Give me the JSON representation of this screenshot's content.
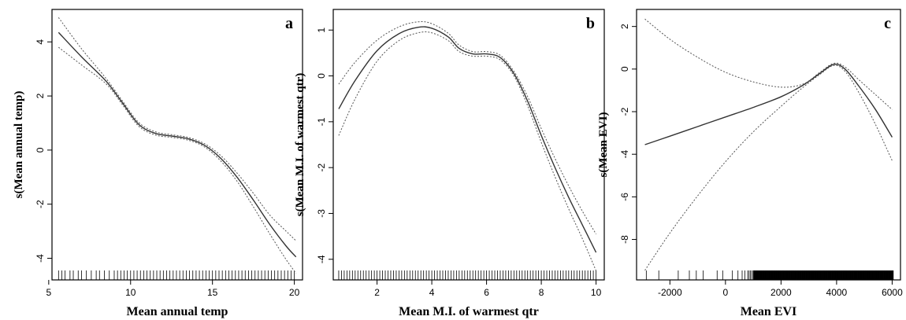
{
  "chart_data": [
    {
      "type": "line",
      "panel_label": "a",
      "xlabel": "Mean annual temp",
      "ylabel": "s(Mean annual temp)",
      "xlim": [
        5.2,
        20.5
      ],
      "ylim": [
        -4.8,
        5.2
      ],
      "xticks": [
        5,
        10,
        15,
        20
      ],
      "yticks": [
        -4,
        -2,
        0,
        2,
        4
      ],
      "ytick_labels": [
        "-4",
        "-2",
        "0",
        "2",
        "4"
      ],
      "xtick_labels": [
        "5",
        "10",
        "15",
        "20"
      ],
      "series": [
        {
          "role": "fit",
          "x": [
            5.6,
            7,
            8.5,
            9.5,
            10.5,
            11.5,
            12.5,
            13.5,
            14.5,
            15.5,
            16.5,
            17.5,
            18.5,
            19.5,
            20.1
          ],
          "y": [
            4.35,
            3.45,
            2.55,
            1.75,
            0.95,
            0.62,
            0.52,
            0.42,
            0.18,
            -0.3,
            -1.0,
            -1.85,
            -2.75,
            -3.55,
            -3.95
          ]
        },
        {
          "role": "upper",
          "x": [
            5.6,
            7,
            8.5,
            9.5,
            10.5,
            11.5,
            12.5,
            13.5,
            14.5,
            15.5,
            16.5,
            17.5,
            18.5,
            19.5,
            20.1
          ],
          "y": [
            4.9,
            3.75,
            2.65,
            1.82,
            1.02,
            0.68,
            0.57,
            0.47,
            0.24,
            -0.2,
            -0.85,
            -1.6,
            -2.4,
            -3.0,
            -3.35
          ]
        },
        {
          "role": "lower",
          "x": [
            5.6,
            7,
            8.5,
            9.5,
            10.5,
            11.5,
            12.5,
            13.5,
            14.5,
            15.5,
            16.5,
            17.5,
            18.5,
            19.5,
            20.1
          ],
          "y": [
            3.8,
            3.15,
            2.45,
            1.68,
            0.88,
            0.56,
            0.47,
            0.37,
            0.12,
            -0.4,
            -1.15,
            -2.1,
            -3.1,
            -4.05,
            -4.55
          ]
        }
      ],
      "rug": [
        5.6,
        5.8,
        6.0,
        6.3,
        6.5,
        6.8,
        7.0,
        7.3,
        7.6,
        7.9,
        8.1,
        8.4,
        8.7,
        9.0,
        9.2,
        9.4,
        9.6,
        9.8,
        10.0,
        10.2,
        10.4,
        10.6,
        10.8,
        11.0,
        11.2,
        11.4,
        11.6,
        11.8,
        12.0,
        12.2,
        12.4,
        12.6,
        12.8,
        13.0,
        13.2,
        13.4,
        13.6,
        13.8,
        14.0,
        14.2,
        14.4,
        14.6,
        14.8,
        15.0,
        15.2,
        15.4,
        15.6,
        15.8,
        16.0,
        16.2,
        16.4,
        16.6,
        16.8,
        17.0,
        17.2,
        17.4,
        17.6,
        17.8,
        18.0,
        18.2,
        18.4,
        18.6,
        18.8,
        19.0,
        19.2,
        19.4,
        19.6,
        19.8,
        20.0
      ]
    },
    {
      "type": "line",
      "panel_label": "b",
      "xlabel": "Mean M.I. of warmest qtr",
      "ylabel": "s(Mean M.I. of warmest qtr)",
      "xlim": [
        0.4,
        10.3
      ],
      "ylim": [
        -4.45,
        1.45
      ],
      "xticks": [
        2,
        4,
        6,
        8,
        10
      ],
      "yticks": [
        -4,
        -3,
        -2,
        -1,
        0,
        1
      ],
      "ytick_labels": [
        "-4",
        "-3",
        "-2",
        "-1",
        "0",
        "1"
      ],
      "xtick_labels": [
        "2",
        "4",
        "6",
        "8",
        "10"
      ],
      "series": [
        {
          "role": "fit",
          "x": [
            0.6,
            1.2,
            2.0,
            2.8,
            3.5,
            4.0,
            4.6,
            5.0,
            5.5,
            6.0,
            6.5,
            7.0,
            7.5,
            8.0,
            8.5,
            9.0,
            9.5,
            10.0
          ],
          "y": [
            -0.72,
            -0.1,
            0.55,
            0.92,
            1.06,
            1.04,
            0.85,
            0.6,
            0.48,
            0.48,
            0.4,
            0.05,
            -0.55,
            -1.3,
            -2.0,
            -2.65,
            -3.25,
            -3.85
          ]
        },
        {
          "role": "upper",
          "x": [
            0.6,
            1.2,
            2.0,
            2.8,
            3.5,
            4.0,
            4.6,
            5.0,
            5.5,
            6.0,
            6.5,
            7.0,
            7.5,
            8.0,
            8.5,
            9.0,
            9.5,
            10.0
          ],
          "y": [
            -0.18,
            0.3,
            0.78,
            1.07,
            1.18,
            1.14,
            0.93,
            0.67,
            0.53,
            0.53,
            0.45,
            0.1,
            -0.45,
            -1.15,
            -1.8,
            -2.4,
            -2.95,
            -3.45
          ]
        },
        {
          "role": "lower",
          "x": [
            0.6,
            1.2,
            2.0,
            2.8,
            3.5,
            4.0,
            4.6,
            5.0,
            5.5,
            6.0,
            6.5,
            7.0,
            7.5,
            8.0,
            8.5,
            9.0,
            9.5,
            10.0
          ],
          "y": [
            -1.3,
            -0.5,
            0.32,
            0.77,
            0.94,
            0.94,
            0.77,
            0.53,
            0.43,
            0.43,
            0.35,
            0.0,
            -0.65,
            -1.45,
            -2.2,
            -2.9,
            -3.55,
            -4.25
          ]
        }
      ],
      "rug_range": [
        0.6,
        10.0
      ],
      "rug_step": 0.1
    },
    {
      "type": "line",
      "panel_label": "c",
      "xlabel": "Mean EVI",
      "ylabel": "s(Mean EVI)",
      "xlim": [
        -3200,
        6300
      ],
      "ylim": [
        -9.9,
        2.8
      ],
      "xticks": [
        -2000,
        0,
        2000,
        4000,
        6000
      ],
      "yticks": [
        -8,
        -6,
        -4,
        -2,
        0,
        2
      ],
      "ytick_labels": [
        "-8",
        "-6",
        "-4",
        "-2",
        "0",
        "2"
      ],
      "xtick_labels": [
        "-2000",
        "0",
        "2000",
        "4000",
        "6000"
      ],
      "series": [
        {
          "role": "fit",
          "x": [
            -2900,
            -2000,
            -1000,
            0,
            1000,
            2000,
            2800,
            3400,
            3900,
            4300,
            4800,
            5400,
            6000
          ],
          "y": [
            -3.55,
            -3.15,
            -2.7,
            -2.25,
            -1.8,
            -1.3,
            -0.75,
            -0.2,
            0.22,
            0.0,
            -0.8,
            -1.9,
            -3.2
          ]
        },
        {
          "role": "upper",
          "x": [
            -2900,
            -2000,
            -1000,
            0,
            1000,
            2000,
            2800,
            3400,
            3900,
            4300,
            4800,
            5400,
            6000
          ],
          "y": [
            2.35,
            1.4,
            0.55,
            -0.15,
            -0.6,
            -0.85,
            -0.7,
            -0.15,
            0.27,
            0.1,
            -0.5,
            -1.2,
            -1.9
          ]
        },
        {
          "role": "lower",
          "x": [
            -2900,
            -2000,
            -1000,
            0,
            1000,
            2000,
            2800,
            3400,
            3900,
            4300,
            4800,
            5400,
            6000
          ],
          "y": [
            -9.45,
            -7.7,
            -5.95,
            -4.35,
            -2.95,
            -1.75,
            -0.85,
            -0.25,
            0.17,
            -0.1,
            -1.1,
            -2.6,
            -4.3
          ]
        }
      ],
      "rug": [
        -2850,
        -2400,
        -1700,
        -1300,
        -1050,
        -800,
        -300,
        -100,
        250,
        450,
        600,
        700,
        800,
        850,
        900,
        950
      ],
      "rug_dense_range": [
        1000,
        6050
      ],
      "rug_dense_step": 12
    }
  ]
}
